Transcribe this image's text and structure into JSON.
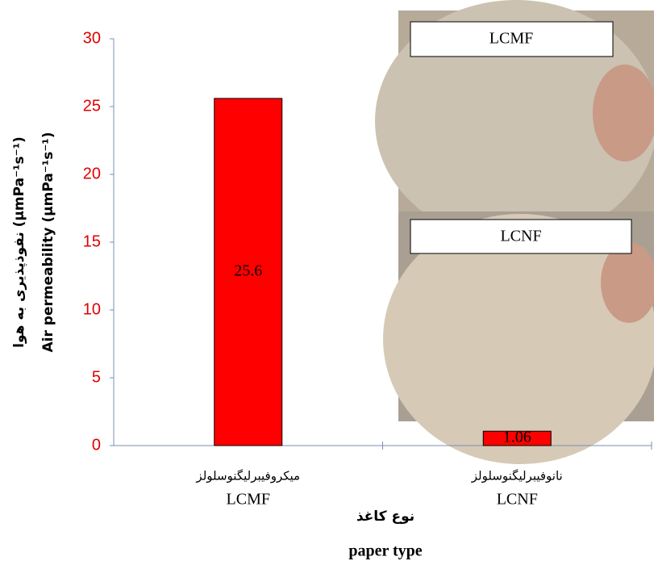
{
  "chart_data": {
    "type": "bar",
    "categories": [
      "LCMF",
      "LCNF"
    ],
    "categories_fa": [
      "میکروفیبرلیگنوسلولز",
      "نانوفیبرلیگنوسلولز"
    ],
    "values": [
      25.6,
      1.06
    ],
    "color": "#ff0000",
    "ylim": [
      0,
      30
    ],
    "yticks": [
      0,
      5,
      10,
      15,
      20,
      25,
      30
    ],
    "y_label_fa": "نفوذپذیری به هوا (µmPa⁻¹s⁻¹)",
    "y_label": "Air permeability  (µmPa⁻¹s⁻¹)",
    "x_label_fa": "نوع کاغذ",
    "x_label": "paper type",
    "inset_labels": [
      "LCMF",
      "LCNF"
    ]
  }
}
